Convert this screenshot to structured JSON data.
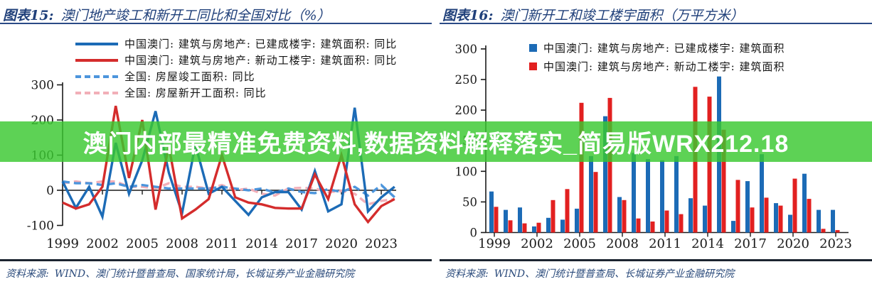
{
  "banner": {
    "text": "澳门内部最精准免费资料,数据资料解释落实_简易版WRX212.18",
    "bg_color": "#39C82F",
    "text_color": "#FFFFFF"
  },
  "left_panel": {
    "figure_label": "图表15:",
    "title": "澳门地产竣工和新开工同比和全国对比（%）",
    "source_label": "资料来源:",
    "source": "WIND、澳门统计暨普查局、国家统计局，长城证券产业金融研究院"
  },
  "right_panel": {
    "figure_label": "图表16:",
    "title": "澳门新开工和竣工楼宇面积（万平方米）",
    "source_label": "资料来源:",
    "source": "WIND、澳门统计暨普查局、长城证券产业金融研究院"
  },
  "chart_data": [
    {
      "type": "line",
      "title": "澳门地产竣工和新开工同比和全国对比（%）",
      "ylabel": "%",
      "ylim": [
        -100,
        300
      ],
      "y_ticks": [
        300,
        200,
        100,
        0,
        -100
      ],
      "x": [
        1999,
        2000,
        2001,
        2002,
        2003,
        2004,
        2005,
        2006,
        2007,
        2008,
        2009,
        2010,
        2011,
        2012,
        2013,
        2014,
        2015,
        2016,
        2017,
        2018,
        2019,
        2020,
        2021,
        2022,
        2023,
        2024
      ],
      "x_tick_labels": [
        "1999",
        "2002",
        "2005",
        "2008",
        "2011",
        "2014",
        "2017",
        "2020",
        "2023"
      ],
      "grid": false,
      "legend_position": "top-left",
      "series": [
        {
          "name": "中国澳门: 建筑与房地产: 已建成楼宇: 建筑面积: 同比",
          "style": "solid",
          "color": "#1C6BB6",
          "values": [
            25,
            -50,
            10,
            -75,
            135,
            -10,
            85,
            225,
            50,
            -65,
            130,
            -10,
            10,
            -30,
            -70,
            -20,
            -5,
            -5,
            -55,
            55,
            -60,
            -40,
            235,
            -60,
            -20,
            10
          ]
        },
        {
          "name": "中国澳门: 建筑与房地产: 新动工楼宇: 建筑面积: 同比",
          "style": "solid",
          "color": "#D42C2C",
          "values": [
            -35,
            -52,
            -40,
            10,
            240,
            35,
            200,
            -55,
            125,
            -80,
            -55,
            -25,
            100,
            -20,
            -35,
            -40,
            -50,
            -52,
            -52,
            45,
            -25,
            100,
            -40,
            -90,
            -45,
            -25
          ]
        },
        {
          "name": "全国: 房屋竣工面积: 同比",
          "style": "dashed",
          "color": "#4C95DC",
          "values": [
            25,
            20,
            20,
            15,
            20,
            10,
            15,
            10,
            5,
            5,
            5,
            5,
            10,
            5,
            0,
            5,
            -7,
            5,
            -5,
            -8,
            3,
            -5,
            10,
            -15,
            15,
            -20
          ]
        },
        {
          "name": "全国: 房屋新开工面积: 同比",
          "style": "dashed",
          "color": "#F2AFB8",
          "values": [
            20,
            25,
            20,
            25,
            25,
            10,
            10,
            5,
            20,
            10,
            10,
            5,
            15,
            0,
            5,
            -10,
            -15,
            5,
            7,
            5,
            -5,
            -2,
            -10,
            -40,
            -30,
            -25
          ]
        }
      ]
    },
    {
      "type": "bar",
      "title": "澳门新开工和竣工楼宇面积（万平方米）",
      "ylabel": "万平方米",
      "ylim": [
        0,
        300
      ],
      "y_ticks": [
        300,
        250,
        200,
        150,
        100,
        50,
        0
      ],
      "categories": [
        1999,
        2000,
        2001,
        2002,
        2003,
        2004,
        2005,
        2006,
        2007,
        2008,
        2009,
        2010,
        2011,
        2012,
        2013,
        2014,
        2015,
        2016,
        2017,
        2018,
        2019,
        2020,
        2021,
        2022,
        2023
      ],
      "x_tick_labels": [
        "1999",
        "2002",
        "2005",
        "2008",
        "2011",
        "2014",
        "2017",
        "2020",
        "2023"
      ],
      "grid": false,
      "legend_position": "top",
      "series": [
        {
          "name": "中国澳门: 建筑与房地产: 已建成楼宇: 建筑面积",
          "color": "#1C6BB6",
          "values": [
            67,
            37,
            41,
            10,
            24,
            21,
            39,
            125,
            190,
            58,
            130,
            120,
            118,
            125,
            56,
            44,
            255,
            19,
            84,
            128,
            48,
            29,
            96,
            37,
            37
          ]
        },
        {
          "name": "中国澳门: 建筑与房地产: 新动工楼宇: 建筑面积",
          "color": "#E22020",
          "values": [
            42,
            20,
            15,
            16,
            53,
            71,
            212,
            99,
            220,
            53,
            23,
            18,
            36,
            30,
            238,
            222,
            168,
            86,
            41,
            57,
            44,
            88,
            55,
            6,
            4
          ]
        }
      ]
    }
  ]
}
